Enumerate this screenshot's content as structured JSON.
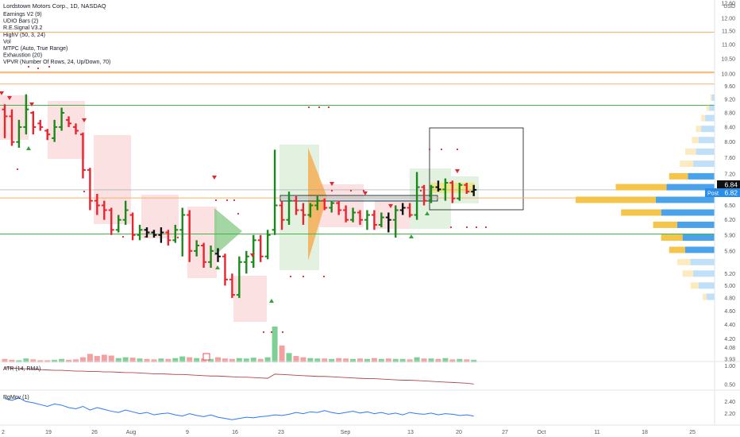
{
  "header": {
    "title": "Lordstown Motors Corp., 1D, NASDAQ",
    "indicators": [
      "Earnings V2 (9)",
      "UDIO Bars (2)",
      "R.E.Signal V3.2",
      "HighV (50, 3, 24)",
      "Vol",
      "MTPC (Auto, True Range)",
      "Exhaustion (20)",
      "VPVR (Number Of Rows, 24, Up/Down, 70)"
    ]
  },
  "currency_label": "USD",
  "price_tags": {
    "last": "6.84",
    "post_label": "Post",
    "post": "6.82"
  },
  "panes": {
    "atr_label": "ATR (14, RMA)",
    "rgmov_label": "RgMov (1)"
  },
  "colors": {
    "up": "#1b8a1b",
    "down": "#e8242e",
    "neutral": "#111111",
    "vol_up": "#7dcf94",
    "vol_down": "#f4a0a0",
    "vp_up": "#f5c54a",
    "vp_down": "#4aa3ea",
    "hline_orange": "#f5b06a",
    "hline_green": "#43b343",
    "atr_line": "#b04552",
    "rgmov_line": "#2979ff"
  },
  "chart_data": [
    {
      "type": "candlestick",
      "title": "Lordstown Motors Corp., 1D, NASDAQ",
      "x_ticks": [
        "2",
        "19",
        "26",
        "Aug",
        "9",
        "16",
        "23",
        "Sep",
        "13",
        "20",
        "27",
        "Oct",
        "11",
        "18",
        "25"
      ],
      "y_ticks": [
        "12.60",
        "12.00",
        "11.50",
        "11.00",
        "10.50",
        "10.00",
        "9.60",
        "9.20",
        "8.80",
        "8.40",
        "8.00",
        "7.60",
        "7.20",
        "6.80",
        "6.50",
        "6.20",
        "5.90",
        "5.60",
        "5.20",
        "5.00",
        "4.80",
        "4.60",
        "4.40",
        "4.20",
        "4.08",
        "3.93"
      ],
      "ylim": [
        3.93,
        12.6
      ],
      "scale": "log",
      "bars": [
        {
          "o": 8.9,
          "h": 9.05,
          "l": 8.1,
          "c": 8.7
        },
        {
          "o": 8.7,
          "h": 8.9,
          "l": 7.9,
          "c": 8.0
        },
        {
          "o": 8.0,
          "h": 8.6,
          "l": 7.85,
          "c": 8.4
        },
        {
          "o": 8.4,
          "h": 9.35,
          "l": 8.2,
          "c": 8.9
        },
        {
          "o": 8.8,
          "h": 8.85,
          "l": 8.2,
          "c": 8.4
        },
        {
          "o": 8.5,
          "h": 8.6,
          "l": 8.3,
          "c": 8.4
        },
        {
          "o": 8.3,
          "h": 8.35,
          "l": 8.05,
          "c": 8.2
        },
        {
          "o": 8.1,
          "h": 8.6,
          "l": 8.0,
          "c": 8.4
        },
        {
          "o": 8.4,
          "h": 8.95,
          "l": 8.3,
          "c": 8.8
        },
        {
          "o": 8.6,
          "h": 8.7,
          "l": 8.4,
          "c": 8.5
        },
        {
          "o": 8.4,
          "h": 8.5,
          "l": 8.2,
          "c": 8.3
        },
        {
          "o": 8.2,
          "h": 8.25,
          "l": 7.1,
          "c": 7.3
        },
        {
          "o": 7.3,
          "h": 7.35,
          "l": 6.4,
          "c": 6.6
        },
        {
          "o": 6.6,
          "h": 6.75,
          "l": 6.3,
          "c": 6.5
        },
        {
          "o": 6.5,
          "h": 6.6,
          "l": 6.2,
          "c": 6.4
        },
        {
          "o": 6.4,
          "h": 6.45,
          "l": 5.9,
          "c": 6.0
        },
        {
          "o": 6.0,
          "h": 6.3,
          "l": 5.95,
          "c": 6.2
        },
        {
          "o": 6.2,
          "h": 6.6,
          "l": 6.1,
          "c": 6.4
        },
        {
          "o": 6.3,
          "h": 6.35,
          "l": 5.8,
          "c": 5.9
        },
        {
          "o": 5.9,
          "h": 6.1,
          "l": 5.8,
          "c": 6.0
        },
        {
          "o": 6.0,
          "h": 6.05,
          "l": 5.85,
          "c": 5.95
        },
        {
          "o": 5.95,
          "h": 6.0,
          "l": 5.85,
          "c": 5.9
        },
        {
          "o": 5.9,
          "h": 6.05,
          "l": 5.75,
          "c": 5.95
        },
        {
          "o": 5.95,
          "h": 6.0,
          "l": 5.7,
          "c": 5.8
        },
        {
          "o": 5.8,
          "h": 6.1,
          "l": 5.75,
          "c": 6.0
        },
        {
          "o": 6.0,
          "h": 6.45,
          "l": 5.5,
          "c": 6.3
        },
        {
          "o": 6.3,
          "h": 6.4,
          "l": 5.4,
          "c": 5.6
        },
        {
          "o": 5.6,
          "h": 5.8,
          "l": 5.5,
          "c": 5.7
        },
        {
          "o": 5.7,
          "h": 5.75,
          "l": 5.3,
          "c": 5.4
        },
        {
          "o": 5.4,
          "h": 5.7,
          "l": 5.3,
          "c": 5.6
        },
        {
          "o": 5.55,
          "h": 5.65,
          "l": 5.4,
          "c": 5.5
        },
        {
          "o": 5.5,
          "h": 5.55,
          "l": 5.0,
          "c": 5.1
        },
        {
          "o": 5.1,
          "h": 5.2,
          "l": 4.8,
          "c": 4.85
        },
        {
          "o": 4.85,
          "h": 5.5,
          "l": 4.8,
          "c": 5.4
        },
        {
          "o": 5.4,
          "h": 5.6,
          "l": 5.2,
          "c": 5.5
        },
        {
          "o": 5.4,
          "h": 5.9,
          "l": 5.3,
          "c": 5.8
        },
        {
          "o": 5.8,
          "h": 5.9,
          "l": 5.4,
          "c": 5.5
        },
        {
          "o": 5.5,
          "h": 6.0,
          "l": 5.45,
          "c": 5.9
        },
        {
          "o": 6.0,
          "h": 7.8,
          "l": 5.9,
          "c": 6.5
        },
        {
          "o": 6.5,
          "h": 6.6,
          "l": 6.0,
          "c": 6.2
        },
        {
          "o": 6.2,
          "h": 6.8,
          "l": 6.1,
          "c": 6.6
        },
        {
          "o": 6.6,
          "h": 6.7,
          "l": 6.3,
          "c": 6.4
        },
        {
          "o": 6.4,
          "h": 6.55,
          "l": 6.1,
          "c": 6.3
        },
        {
          "o": 6.3,
          "h": 6.55,
          "l": 6.25,
          "c": 6.5
        },
        {
          "o": 6.5,
          "h": 6.7,
          "l": 6.4,
          "c": 6.6
        },
        {
          "o": 6.6,
          "h": 6.65,
          "l": 6.4,
          "c": 6.45
        },
        {
          "o": 6.45,
          "h": 6.6,
          "l": 6.35,
          "c": 6.55
        },
        {
          "o": 6.55,
          "h": 6.6,
          "l": 6.3,
          "c": 6.4
        },
        {
          "o": 6.4,
          "h": 6.5,
          "l": 6.15,
          "c": 6.2
        },
        {
          "o": 6.2,
          "h": 6.45,
          "l": 6.15,
          "c": 6.35
        },
        {
          "o": 6.35,
          "h": 6.4,
          "l": 6.1,
          "c": 6.2
        },
        {
          "o": 6.2,
          "h": 6.4,
          "l": 6.0,
          "c": 6.3
        },
        {
          "o": 6.3,
          "h": 6.4,
          "l": 6.0,
          "c": 6.1
        },
        {
          "o": 6.1,
          "h": 6.35,
          "l": 6.05,
          "c": 6.25
        },
        {
          "o": 6.25,
          "h": 6.35,
          "l": 5.95,
          "c": 6.2
        },
        {
          "o": 6.2,
          "h": 6.5,
          "l": 5.85,
          "c": 6.4
        },
        {
          "o": 6.4,
          "h": 6.55,
          "l": 6.3,
          "c": 6.45
        },
        {
          "o": 6.45,
          "h": 6.55,
          "l": 6.25,
          "c": 6.3
        },
        {
          "o": 6.3,
          "h": 7.25,
          "l": 6.2,
          "c": 6.9
        },
        {
          "o": 6.9,
          "h": 6.95,
          "l": 6.5,
          "c": 6.6
        },
        {
          "o": 6.6,
          "h": 6.95,
          "l": 6.55,
          "c": 6.9
        },
        {
          "o": 6.9,
          "h": 7.05,
          "l": 6.8,
          "c": 6.85
        },
        {
          "o": 6.85,
          "h": 7.1,
          "l": 6.6,
          "c": 7.0
        },
        {
          "o": 7.0,
          "h": 7.05,
          "l": 6.55,
          "c": 6.65
        },
        {
          "o": 6.65,
          "h": 7.0,
          "l": 6.6,
          "c": 6.95
        },
        {
          "o": 6.95,
          "h": 7.0,
          "l": 6.75,
          "c": 6.8
        },
        {
          "o": 6.8,
          "h": 6.95,
          "l": 6.7,
          "c": 6.84
        }
      ],
      "volume": [
        8,
        6,
        5,
        9,
        7,
        5,
        5,
        6,
        8,
        6,
        7,
        12,
        20,
        15,
        18,
        16,
        10,
        12,
        11,
        9,
        8,
        7,
        9,
        8,
        10,
        14,
        12,
        10,
        9,
        8,
        12,
        9,
        8,
        10,
        9,
        11,
        8,
        12,
        85,
        40,
        22,
        15,
        12,
        10,
        9,
        9,
        8,
        10,
        9,
        8,
        9,
        8,
        10,
        8,
        9,
        8,
        8,
        7,
        12,
        9,
        9,
        8,
        10,
        7,
        8,
        7,
        6
      ],
      "horizontal_lines": [
        11.46,
        10.06,
        10.03,
        9.67,
        9.02,
        6.84,
        6.66,
        5.92
      ],
      "volume_profile": {
        "rows": [
          {
            "price": 9.25,
            "up": 1,
            "down": 2
          },
          {
            "price": 8.95,
            "up": 2,
            "down": 4
          },
          {
            "price": 8.65,
            "up": 3,
            "down": 7
          },
          {
            "price": 8.35,
            "up": 4,
            "down": 10
          },
          {
            "price": 8.05,
            "up": 5,
            "down": 12
          },
          {
            "price": 7.75,
            "up": 8,
            "down": 14
          },
          {
            "price": 7.45,
            "up": 10,
            "down": 16
          },
          {
            "price": 7.15,
            "up": 14,
            "down": 20
          },
          {
            "price": 6.9,
            "up": 38,
            "down": 36
          },
          {
            "price": 6.62,
            "up": 60,
            "down": 44
          },
          {
            "price": 6.35,
            "up": 30,
            "down": 40
          },
          {
            "price": 6.1,
            "up": 18,
            "down": 28
          },
          {
            "price": 5.85,
            "up": 16,
            "down": 24
          },
          {
            "price": 5.62,
            "up": 12,
            "down": 22
          },
          {
            "price": 5.4,
            "up": 10,
            "down": 18
          },
          {
            "price": 5.2,
            "up": 8,
            "down": 16
          },
          {
            "price": 5.0,
            "up": 6,
            "down": 12
          },
          {
            "price": 4.82,
            "up": 3,
            "down": 6
          }
        ]
      }
    },
    {
      "type": "line",
      "title": "ATR (14, RMA)",
      "y_ticks": [
        "1.00",
        "0.50"
      ],
      "ylim": [
        0.4,
        1.05
      ],
      "values": [
        0.95,
        0.94,
        0.93,
        0.92,
        0.91,
        0.9,
        0.89,
        0.88,
        0.88,
        0.87,
        0.86,
        0.86,
        0.85,
        0.85,
        0.84,
        0.84,
        0.83,
        0.82,
        0.82,
        0.81,
        0.8,
        0.79,
        0.79,
        0.78,
        0.77,
        0.77,
        0.76,
        0.75,
        0.74,
        0.73,
        0.73,
        0.72,
        0.71,
        0.7,
        0.7,
        0.69,
        0.68,
        0.67,
        0.78,
        0.77,
        0.76,
        0.75,
        0.74,
        0.73,
        0.72,
        0.72,
        0.71,
        0.7,
        0.69,
        0.68,
        0.67,
        0.66,
        0.66,
        0.65,
        0.64,
        0.63,
        0.62,
        0.62,
        0.61,
        0.6,
        0.59,
        0.58,
        0.57,
        0.56,
        0.55,
        0.54,
        0.52
      ]
    },
    {
      "type": "line",
      "title": "RgMov (1)",
      "y_ticks": [
        "2.40",
        "2.20"
      ],
      "ylim": [
        2.05,
        2.55
      ],
      "values": [
        2.45,
        2.42,
        2.46,
        2.4,
        2.38,
        2.35,
        2.32,
        2.36,
        2.34,
        2.3,
        2.28,
        2.32,
        2.26,
        2.3,
        2.27,
        2.24,
        2.22,
        2.26,
        2.23,
        2.2,
        2.22,
        2.18,
        2.2,
        2.21,
        2.18,
        2.16,
        2.2,
        2.17,
        2.15,
        2.18,
        2.14,
        2.12,
        2.1,
        2.12,
        2.14,
        2.13,
        2.15,
        2.16,
        2.18,
        2.17,
        2.19,
        2.22,
        2.2,
        2.23,
        2.22,
        2.25,
        2.22,
        2.2,
        2.22,
        2.24,
        2.21,
        2.23,
        2.2,
        2.22,
        2.19,
        2.21,
        2.18,
        2.22,
        2.2,
        2.19,
        2.21,
        2.18,
        2.2,
        2.19,
        2.17,
        2.18,
        2.16
      ]
    }
  ]
}
